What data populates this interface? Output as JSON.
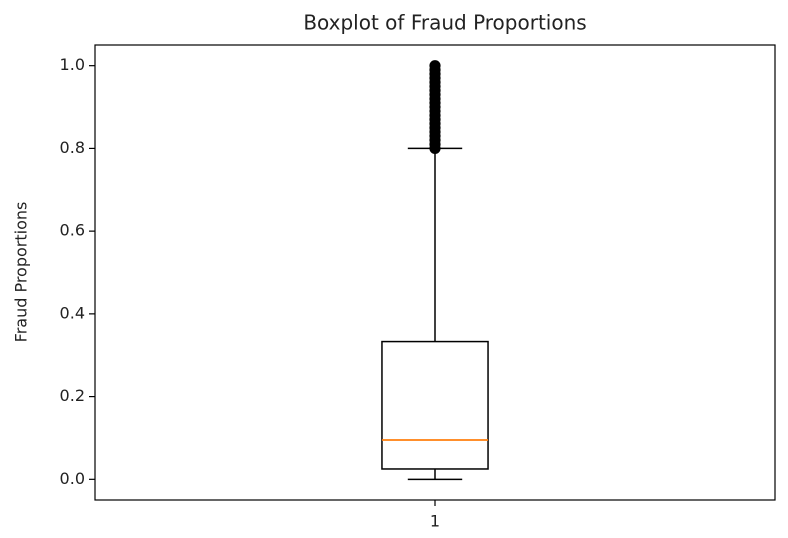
{
  "chart_data": {
    "type": "box",
    "title": "Boxplot of Fraud Proportions",
    "ylabel": "Fraud Proportions",
    "categories": [
      "1"
    ],
    "boxes": [
      {
        "whislo": 0,
        "q1": 0.025,
        "med": 0.095,
        "q3": 0.333,
        "whishi": 0.8,
        "fliers": [
          0.8,
          0.81,
          0.82,
          0.83,
          0.84,
          0.85,
          0.86,
          0.87,
          0.88,
          0.89,
          0.9,
          0.91,
          0.92,
          0.93,
          0.94,
          0.95,
          0.96,
          0.97,
          0.98,
          0.99,
          1.0
        ]
      }
    ],
    "box_color": "#000000",
    "median_color": "#ff7f0e",
    "ylim": [
      -0.05,
      1.05
    ],
    "yticks": [
      {
        "value": 0,
        "label": "0.0"
      },
      0.2,
      0.4,
      0.6,
      0.8,
      {
        "value": 1,
        "label": "1.0"
      }
    ],
    "grid": false
  }
}
